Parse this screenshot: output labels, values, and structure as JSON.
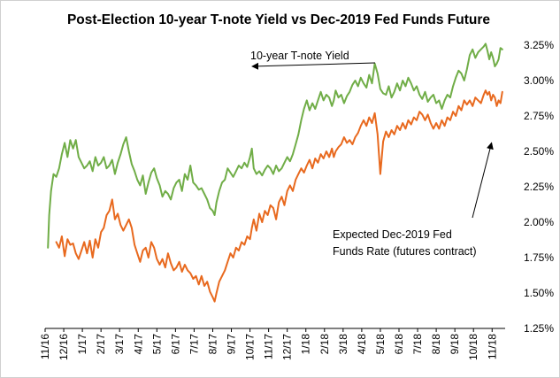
{
  "chart_data": {
    "type": "line",
    "title": "Post-Election 10-year T-note Yield vs Dec-2019 Fed Funds Future",
    "xlabel": "",
    "ylabel": "",
    "x_tick_labels": [
      "11/16",
      "12/16",
      "1/17",
      "2/17",
      "3/17",
      "4/17",
      "5/17",
      "6/17",
      "7/17",
      "8/17",
      "9/17",
      "10/17",
      "11/17",
      "12/17",
      "1/18",
      "2/18",
      "3/18",
      "4/18",
      "5/18",
      "6/18",
      "7/18",
      "8/18",
      "9/18",
      "10/18",
      "11/18"
    ],
    "y_tick_labels": [
      "1.25%",
      "1.50%",
      "1.75%",
      "2.00%",
      "2.25%",
      "2.50%",
      "2.75%",
      "3.00%",
      "3.25%"
    ],
    "xlim": [
      0,
      24.7
    ],
    "ylim": [
      1.25,
      3.25
    ],
    "grid": false,
    "legend": "none",
    "colors": {
      "yield": "#70ad47",
      "fed_funds": "#e8691e",
      "axis": "#000000"
    },
    "annotations": [
      {
        "lines": [
          "10-year T-note Yield"
        ],
        "target": [
          11.12,
          3.1
        ]
      },
      {
        "lines": [
          "Expected Dec-2019 Fed",
          "Funds Rate (futures contract)"
        ],
        "target": [
          23.97,
          2.56
        ]
      }
    ],
    "series": [
      {
        "key": "yield",
        "x": [
          0.15,
          0.22,
          0.32,
          0.45,
          0.6,
          0.75,
          0.9,
          1.05,
          1.2,
          1.35,
          1.5,
          1.65,
          1.8,
          1.95,
          2.1,
          2.25,
          2.4,
          2.55,
          2.7,
          2.85,
          3.0,
          3.15,
          3.3,
          3.45,
          3.6,
          3.75,
          3.9,
          4.05,
          4.2,
          4.35,
          4.5,
          4.65,
          4.8,
          4.95,
          5.1,
          5.25,
          5.4,
          5.55,
          5.7,
          5.85,
          6.0,
          6.15,
          6.3,
          6.45,
          6.6,
          6.75,
          6.9,
          7.05,
          7.2,
          7.35,
          7.5,
          7.65,
          7.8,
          7.95,
          8.1,
          8.25,
          8.4,
          8.55,
          8.7,
          8.85,
          9.0,
          9.1,
          9.2,
          9.35,
          9.5,
          9.65,
          9.8,
          9.95,
          10.1,
          10.25,
          10.4,
          10.55,
          10.7,
          10.85,
          11.0,
          11.1,
          11.2,
          11.35,
          11.5,
          11.65,
          11.8,
          11.95,
          12.1,
          12.25,
          12.4,
          12.55,
          12.7,
          12.85,
          13.0,
          13.15,
          13.3,
          13.45,
          13.6,
          13.75,
          13.9,
          14.05,
          14.2,
          14.35,
          14.5,
          14.65,
          14.8,
          14.95,
          15.1,
          15.25,
          15.4,
          15.5,
          15.6,
          15.75,
          15.9,
          16.05,
          16.2,
          16.35,
          16.5,
          16.65,
          16.8,
          16.95,
          17.1,
          17.25,
          17.4,
          17.55,
          17.7,
          17.85,
          18.0,
          18.15,
          18.3,
          18.45,
          18.6,
          18.75,
          18.9,
          19.05,
          19.2,
          19.35,
          19.5,
          19.65,
          19.8,
          19.95,
          20.1,
          20.25,
          20.4,
          20.55,
          20.7,
          20.85,
          21.0,
          21.15,
          21.3,
          21.45,
          21.6,
          21.75,
          21.9,
          22.05,
          22.2,
          22.35,
          22.5,
          22.65,
          22.8,
          22.95,
          23.1,
          23.25,
          23.4,
          23.55,
          23.65,
          23.75,
          23.85,
          23.95,
          24.05,
          24.15,
          24.25,
          24.35,
          24.45,
          24.55
        ],
        "values": [
          1.82,
          2.05,
          2.22,
          2.34,
          2.32,
          2.38,
          2.48,
          2.56,
          2.46,
          2.58,
          2.52,
          2.58,
          2.46,
          2.42,
          2.38,
          2.4,
          2.43,
          2.36,
          2.46,
          2.4,
          2.42,
          2.46,
          2.38,
          2.4,
          2.44,
          2.34,
          2.42,
          2.48,
          2.55,
          2.6,
          2.5,
          2.41,
          2.36,
          2.3,
          2.26,
          2.33,
          2.2,
          2.28,
          2.35,
          2.38,
          2.31,
          2.26,
          2.18,
          2.22,
          2.2,
          2.16,
          2.24,
          2.28,
          2.3,
          2.22,
          2.34,
          2.3,
          2.4,
          2.28,
          2.26,
          2.23,
          2.24,
          2.2,
          2.16,
          2.1,
          2.08,
          2.05,
          2.14,
          2.22,
          2.28,
          2.3,
          2.38,
          2.35,
          2.32,
          2.36,
          2.4,
          2.38,
          2.42,
          2.39,
          2.46,
          2.52,
          2.38,
          2.34,
          2.36,
          2.33,
          2.37,
          2.4,
          2.38,
          2.34,
          2.4,
          2.36,
          2.38,
          2.42,
          2.46,
          2.43,
          2.48,
          2.55,
          2.62,
          2.72,
          2.8,
          2.86,
          2.79,
          2.84,
          2.8,
          2.86,
          2.92,
          2.86,
          2.9,
          2.88,
          2.82,
          2.86,
          2.93,
          2.88,
          2.9,
          2.84,
          2.89,
          2.92,
          2.97,
          3.0,
          2.96,
          3.02,
          2.98,
          2.95,
          3.04,
          2.98,
          3.12,
          3.05,
          2.94,
          2.91,
          2.9,
          2.96,
          2.88,
          2.92,
          2.98,
          2.93,
          3.0,
          2.96,
          3.02,
          2.98,
          2.93,
          2.96,
          2.9,
          2.87,
          2.92,
          2.85,
          2.88,
          2.9,
          2.84,
          2.86,
          2.8,
          2.86,
          2.9,
          2.88,
          2.96,
          3.02,
          3.07,
          3.05,
          3.0,
          3.08,
          3.18,
          3.22,
          3.16,
          3.2,
          3.22,
          3.24,
          3.26,
          3.21,
          3.15,
          3.2,
          3.16,
          3.1,
          3.12,
          3.15,
          3.23,
          3.22
        ]
      },
      {
        "key": "fed_funds",
        "x": [
          0.6,
          0.75,
          0.9,
          1.05,
          1.2,
          1.35,
          1.5,
          1.65,
          1.8,
          1.95,
          2.1,
          2.25,
          2.4,
          2.55,
          2.7,
          2.85,
          3.0,
          3.15,
          3.3,
          3.45,
          3.6,
          3.75,
          3.9,
          4.05,
          4.2,
          4.35,
          4.5,
          4.65,
          4.8,
          4.95,
          5.1,
          5.25,
          5.4,
          5.55,
          5.7,
          5.85,
          6.0,
          6.15,
          6.3,
          6.45,
          6.6,
          6.75,
          6.9,
          7.05,
          7.2,
          7.35,
          7.5,
          7.65,
          7.8,
          7.95,
          8.1,
          8.25,
          8.4,
          8.55,
          8.7,
          8.85,
          9.0,
          9.1,
          9.2,
          9.35,
          9.5,
          9.65,
          9.8,
          9.95,
          10.1,
          10.25,
          10.4,
          10.55,
          10.7,
          10.85,
          11.0,
          11.1,
          11.2,
          11.35,
          11.5,
          11.65,
          11.8,
          11.95,
          12.1,
          12.25,
          12.4,
          12.55,
          12.7,
          12.85,
          13.0,
          13.15,
          13.3,
          13.45,
          13.6,
          13.75,
          13.9,
          14.05,
          14.2,
          14.35,
          14.5,
          14.65,
          14.8,
          14.95,
          15.1,
          15.25,
          15.4,
          15.5,
          15.6,
          15.75,
          15.9,
          16.05,
          16.2,
          16.35,
          16.5,
          16.65,
          16.8,
          16.95,
          17.1,
          17.25,
          17.4,
          17.55,
          17.7,
          17.85,
          18.0,
          18.15,
          18.3,
          18.45,
          18.6,
          18.75,
          18.9,
          19.05,
          19.2,
          19.35,
          19.5,
          19.65,
          19.8,
          19.95,
          20.1,
          20.25,
          20.4,
          20.55,
          20.7,
          20.85,
          21.0,
          21.15,
          21.3,
          21.45,
          21.6,
          21.75,
          21.9,
          22.05,
          22.2,
          22.35,
          22.5,
          22.65,
          22.8,
          22.95,
          23.1,
          23.25,
          23.4,
          23.55,
          23.65,
          23.75,
          23.85,
          23.95,
          24.05,
          24.15,
          24.25,
          24.35,
          24.45,
          24.55
        ],
        "values": [
          1.86,
          1.82,
          1.9,
          1.76,
          1.88,
          1.84,
          1.85,
          1.78,
          1.74,
          1.8,
          1.86,
          1.78,
          1.87,
          1.75,
          1.88,
          1.82,
          1.93,
          1.96,
          2.05,
          2.08,
          2.16,
          2.02,
          2.06,
          1.98,
          1.94,
          1.98,
          2.02,
          1.96,
          1.84,
          1.78,
          1.72,
          1.8,
          1.82,
          1.75,
          1.86,
          1.82,
          1.74,
          1.7,
          1.74,
          1.68,
          1.78,
          1.71,
          1.66,
          1.68,
          1.72,
          1.65,
          1.7,
          1.66,
          1.64,
          1.6,
          1.62,
          1.56,
          1.62,
          1.55,
          1.58,
          1.51,
          1.47,
          1.44,
          1.5,
          1.58,
          1.62,
          1.66,
          1.72,
          1.78,
          1.75,
          1.82,
          1.8,
          1.86,
          1.84,
          1.9,
          1.88,
          1.96,
          2.02,
          1.94,
          2.06,
          2.0,
          2.08,
          2.05,
          2.12,
          2.1,
          2.02,
          2.14,
          2.18,
          2.12,
          2.22,
          2.26,
          2.22,
          2.3,
          2.34,
          2.38,
          2.35,
          2.4,
          2.44,
          2.38,
          2.45,
          2.42,
          2.48,
          2.45,
          2.5,
          2.46,
          2.52,
          2.46,
          2.5,
          2.53,
          2.55,
          2.6,
          2.56,
          2.58,
          2.55,
          2.6,
          2.63,
          2.68,
          2.72,
          2.68,
          2.74,
          2.7,
          2.77,
          2.62,
          2.34,
          2.57,
          2.64,
          2.6,
          2.65,
          2.62,
          2.68,
          2.65,
          2.7,
          2.66,
          2.72,
          2.69,
          2.74,
          2.72,
          2.78,
          2.76,
          2.72,
          2.76,
          2.7,
          2.66,
          2.7,
          2.66,
          2.72,
          2.68,
          2.74,
          2.72,
          2.78,
          2.75,
          2.82,
          2.79,
          2.86,
          2.83,
          2.86,
          2.82,
          2.88,
          2.86,
          2.84,
          2.9,
          2.93,
          2.9,
          2.92,
          2.86,
          2.9,
          2.88,
          2.82,
          2.86,
          2.84,
          2.92
        ]
      }
    ]
  }
}
